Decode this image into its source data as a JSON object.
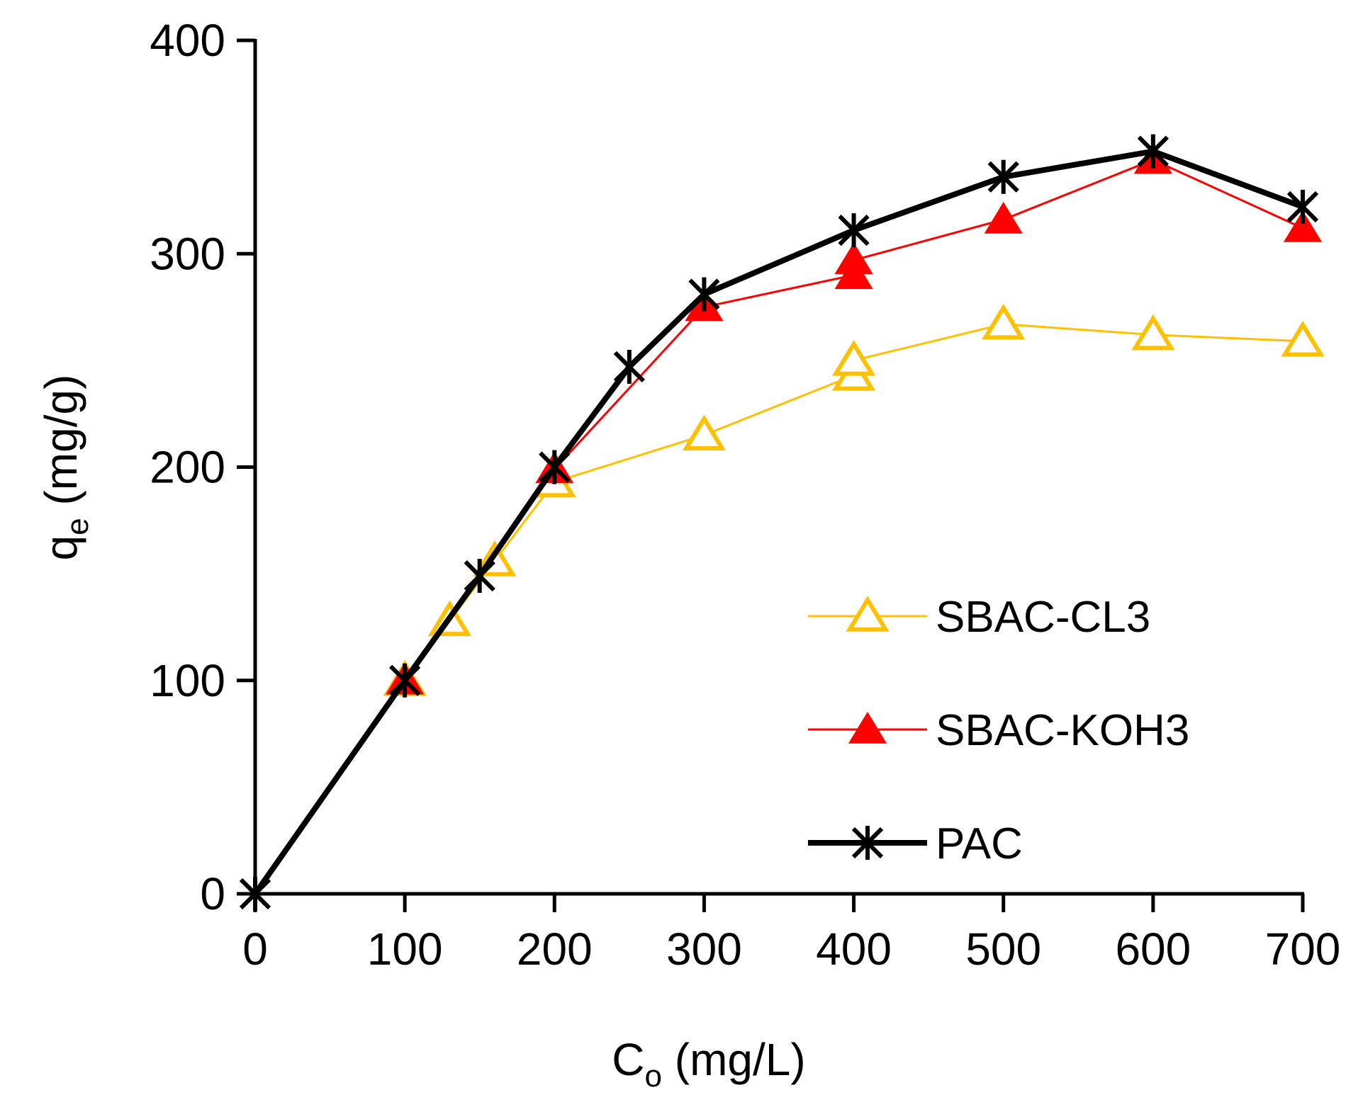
{
  "chart_data": {
    "type": "line",
    "title": "",
    "xlabel": {
      "main": "C",
      "sub": "o",
      "unit": " (mg/L)"
    },
    "ylabel": {
      "main": "q",
      "sub": "e",
      "unit": " (mg/g)"
    },
    "xlim": [
      0,
      700
    ],
    "ylim": [
      0,
      400
    ],
    "xticks": [
      0,
      100,
      200,
      300,
      400,
      500,
      600,
      700
    ],
    "yticks": [
      0,
      100,
      200,
      300,
      400
    ],
    "xtick_labels": [
      "0",
      "100",
      "200",
      "300",
      "400",
      "500",
      "600",
      "700"
    ],
    "ytick_labels": [
      "0",
      "100",
      "200",
      "300",
      "400"
    ],
    "grid": false,
    "legend_position": "right",
    "series": [
      {
        "name": "SBAC-CL3",
        "color": "#FFC000",
        "marker": "open-triangle",
        "x": [
          100,
          130,
          160,
          200,
          300,
          400,
          400,
          500,
          600,
          700
        ],
        "y": [
          100,
          128,
          156,
          193,
          215,
          243,
          250,
          267,
          262,
          259
        ]
      },
      {
        "name": "SBAC-KOH3",
        "color": "#FF0000",
        "marker": "filled-triangle",
        "x": [
          100,
          200,
          300,
          400,
          400,
          500,
          600,
          700
        ],
        "y": [
          100,
          199,
          275,
          290,
          297,
          316,
          344,
          312
        ]
      },
      {
        "name": "PAC",
        "color": "#000000",
        "marker": "asterisk",
        "x": [
          0,
          100,
          150,
          200,
          250,
          300,
          400,
          500,
          600,
          700
        ],
        "y": [
          0,
          100,
          149,
          200,
          247,
          281,
          311,
          336,
          348,
          322
        ]
      }
    ]
  }
}
